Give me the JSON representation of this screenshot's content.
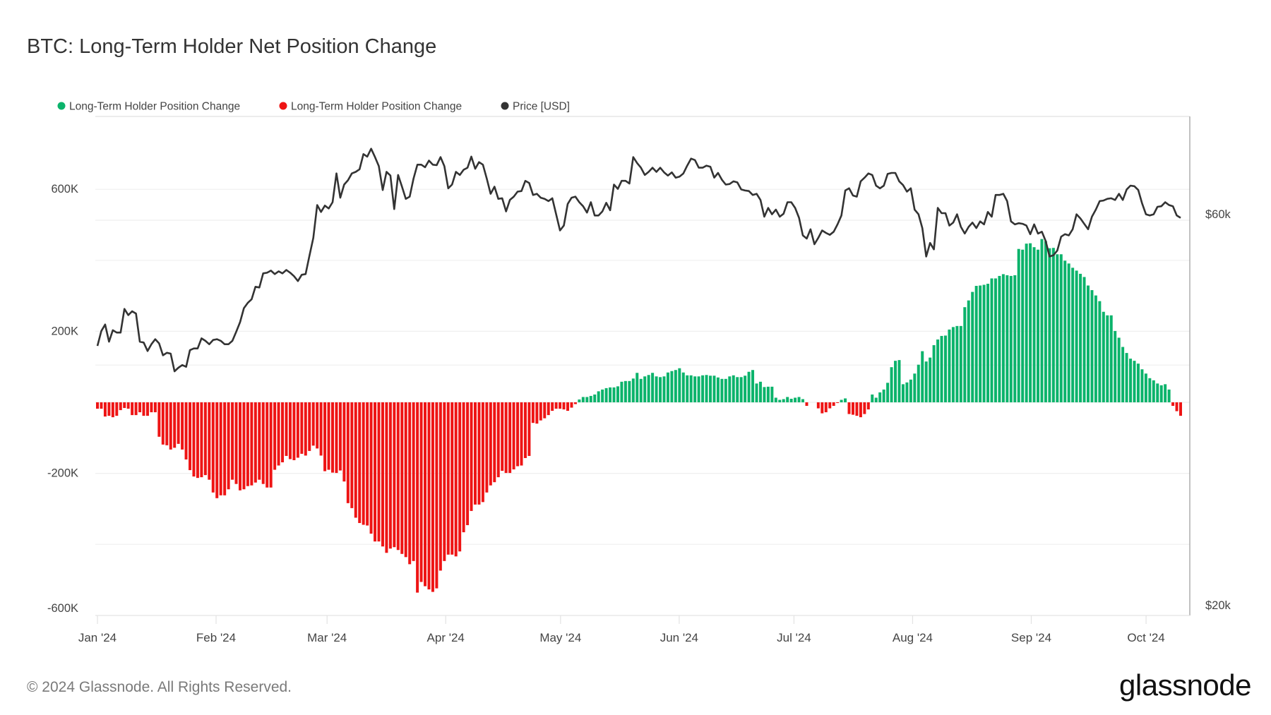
{
  "title": "BTC: Long-Term Holder Net Position Change",
  "footer": "© 2024 Glassnode. All Rights Reserved.",
  "logo_text": "glassnode",
  "colors": {
    "positive": "#0bb36b",
    "negative": "#ee1414",
    "price": "#333333"
  },
  "chart_data": {
    "type": "bar",
    "title": "BTC: Long-Term Holder Net Position Change",
    "xlabel": "",
    "ylabel": "",
    "start_date": "2024-01-01",
    "interval": "1d",
    "legend": [
      "Long-Term Holder Position Change",
      "Long-Term Holder Position Change",
      "Price [USD]"
    ],
    "legend_placement": "top-left",
    "x_ticks": [
      {
        "label": "Jan '24",
        "day": 0
      },
      {
        "label": "Feb '24",
        "day": 31
      },
      {
        "label": "Mar '24",
        "day": 60
      },
      {
        "label": "Apr '24",
        "day": 91
      },
      {
        "label": "May '24",
        "day": 121
      },
      {
        "label": "Jun '24",
        "day": 152
      },
      {
        "label": "Jul '24",
        "day": 182
      },
      {
        "label": "Aug '24",
        "day": 213
      },
      {
        "label": "Sep '24",
        "day": 244
      },
      {
        "label": "Oct '24",
        "day": 274
      }
    ],
    "y_left": {
      "ylim": [
        -600000,
        800000
      ],
      "grid": [
        -600000,
        -400000,
        -200000,
        0,
        200000,
        400000,
        600000
      ],
      "ticks": [
        {
          "label": "600K",
          "value": 600000
        },
        {
          "label": "200K",
          "value": 200000
        },
        {
          "label": "-200K",
          "value": -200000
        },
        {
          "label": "-600K",
          "value": -600000
        }
      ]
    },
    "y_right": {
      "scale": "log",
      "ylim": [
        20000,
        80000
      ],
      "grid": [
        40000,
        60000
      ],
      "ticks": [
        {
          "label": "$60k",
          "value": 60000
        },
        {
          "label": "$20k",
          "value": 20000
        }
      ]
    },
    "grid": true,
    "series": [
      {
        "name": "Long-Term Holder Position Change",
        "type": "bar",
        "axis": "left",
        "note": "positive values green, negative values red",
        "values": [
          -18000,
          -18000,
          -40000,
          -38000,
          -42000,
          -38000,
          -22000,
          -16000,
          -18000,
          -36000,
          -36000,
          -28000,
          -38000,
          -38000,
          -28000,
          -28000,
          -97000,
          -119000,
          -121000,
          -133000,
          -128000,
          -117000,
          -133000,
          -161000,
          -191000,
          -209000,
          -213000,
          -211000,
          -205000,
          -218000,
          -254000,
          -270000,
          -262000,
          -262000,
          -245000,
          -218000,
          -230000,
          -248000,
          -245000,
          -236000,
          -234000,
          -226000,
          -218000,
          -230000,
          -240000,
          -240000,
          -190000,
          -178000,
          -169000,
          -151000,
          -160000,
          -163000,
          -156000,
          -145000,
          -150000,
          -137000,
          -122000,
          -130000,
          -150000,
          -194000,
          -190000,
          -198000,
          -199000,
          -192000,
          -223000,
          -284000,
          -298000,
          -325000,
          -340000,
          -345000,
          -347000,
          -370000,
          -392000,
          -392000,
          -406000,
          -424000,
          -412000,
          -408000,
          -416000,
          -427000,
          -436000,
          -456000,
          -447000,
          -536000,
          -506000,
          -518000,
          -527000,
          -534000,
          -524000,
          -474000,
          -447000,
          -429000,
          -429000,
          -434000,
          -420000,
          -366000,
          -346000,
          -306000,
          -288000,
          -288000,
          -281000,
          -254000,
          -234000,
          -225000,
          -211000,
          -193000,
          -199000,
          -199000,
          -189000,
          -180000,
          -178000,
          -157000,
          -151000,
          -58000,
          -60000,
          -51000,
          -45000,
          -36000,
          -24000,
          -18000,
          -18000,
          -20000,
          -24000,
          -15000,
          -5000,
          8000,
          15000,
          15000,
          18000,
          22000,
          31000,
          36000,
          40000,
          42000,
          42000,
          45000,
          58000,
          60000,
          60000,
          67000,
          83000,
          66000,
          73000,
          77000,
          83000,
          73000,
          71000,
          73000,
          84000,
          88000,
          91000,
          96000,
          84000,
          76000,
          76000,
          73000,
          73000,
          76000,
          77000,
          75000,
          75000,
          70000,
          66000,
          66000,
          73000,
          76000,
          71000,
          71000,
          75000,
          86000,
          91000,
          53000,
          58000,
          43000,
          44000,
          44000,
          13000,
          7000,
          9000,
          15000,
          10000,
          13000,
          15000,
          9000,
          -10000,
          0,
          0,
          -17000,
          -31000,
          -28000,
          -17000,
          -10000,
          -2000,
          7000,
          11000,
          -33000,
          -35000,
          -38000,
          -42000,
          -33000,
          -20000,
          22000,
          13000,
          28000,
          36000,
          55000,
          99000,
          117000,
          119000,
          51000,
          56000,
          64000,
          81000,
          106000,
          144000,
          115000,
          126000,
          161000,
          177000,
          187000,
          188000,
          205000,
          212000,
          215000,
          215000,
          268000,
          287000,
          311000,
          328000,
          329000,
          331000,
          334000,
          349000,
          349000,
          356000,
          361000,
          358000,
          356000,
          358000,
          432000,
          430000,
          447000,
          448000,
          437000,
          430000,
          460000,
          454000,
          434000,
          435000,
          417000,
          417000,
          399000,
          391000,
          379000,
          371000,
          362000,
          353000,
          329000,
          316000,
          301000,
          285000,
          255000,
          245000,
          245000,
          201000,
          182000,
          156000,
          139000,
          123000,
          117000,
          109000,
          93000,
          81000,
          68000,
          62000,
          53000,
          48000,
          51000,
          36000,
          -10000,
          -25000,
          -38000
        ]
      },
      {
        "name": "Price [USD]",
        "type": "line",
        "axis": "right",
        "values": [
          42200,
          44000,
          44800,
          42700,
          44100,
          43800,
          43800,
          46800,
          46000,
          46500,
          46200,
          42700,
          42600,
          41600,
          42400,
          43000,
          42500,
          41100,
          41400,
          41300,
          39300,
          39700,
          40000,
          39800,
          41700,
          41900,
          41900,
          43100,
          42800,
          42400,
          42900,
          43000,
          42800,
          42400,
          42400,
          42800,
          43900,
          45100,
          46900,
          47600,
          48100,
          49800,
          49700,
          51700,
          51800,
          52100,
          51600,
          52000,
          51700,
          52200,
          51800,
          51300,
          50600,
          51500,
          51600,
          54300,
          57100,
          62600,
          61400,
          62500,
          62000,
          63100,
          68400,
          63900,
          66300,
          67100,
          68400,
          68700,
          69200,
          72200,
          71700,
          73300,
          71600,
          69800,
          65300,
          68700,
          68000,
          61900,
          68100,
          65900,
          63700,
          64100,
          67400,
          70100,
          70100,
          69600,
          70900,
          70100,
          70000,
          71600,
          69800,
          65600,
          66300,
          68700,
          68100,
          69100,
          69500,
          71700,
          69300,
          70600,
          70100,
          67400,
          64600,
          65900,
          63700,
          63800,
          61500,
          63500,
          64100,
          65000,
          65100,
          67000,
          66600,
          64400,
          64600,
          63900,
          63700,
          63300,
          63800,
          61000,
          58300,
          59100,
          62800,
          63900,
          64100,
          63100,
          62400,
          61300,
          63100,
          60800,
          60800,
          61500,
          63000,
          61700,
          66300,
          65500,
          67000,
          67000,
          66500,
          71600,
          70400,
          69500,
          68100,
          68700,
          69500,
          68700,
          69500,
          68600,
          68000,
          68600,
          67600,
          67800,
          68400,
          69900,
          71300,
          71000,
          69500,
          69500,
          69900,
          69700,
          67600,
          68500,
          67200,
          66300,
          66400,
          66900,
          66700,
          65400,
          65200,
          65100,
          64400,
          64600,
          63500,
          60600,
          62100,
          61000,
          61800,
          60600,
          61100,
          63100,
          63100,
          62100,
          60400,
          57500,
          57000,
          58500,
          56100,
          57100,
          58300,
          57900,
          57600,
          58100,
          59300,
          60800,
          65200,
          65600,
          64300,
          64100,
          66900,
          67600,
          68400,
          68100,
          66100,
          65600,
          66100,
          68300,
          68500,
          68500,
          66900,
          66200,
          65000,
          65600,
          61800,
          61000,
          58700,
          54200,
          56300,
          55300,
          62100,
          61200,
          61200,
          59100,
          59600,
          61000,
          58900,
          57800,
          58900,
          59600,
          58700,
          59800,
          59300,
          61400,
          60600,
          64400,
          64400,
          64600,
          63300,
          59800,
          59300,
          59500,
          59400,
          59100,
          57700,
          59300,
          57800,
          58100,
          56600,
          54200,
          54400,
          55100,
          57300,
          57700,
          57500,
          58500,
          61000,
          60300,
          59400,
          58500,
          60600,
          61800,
          63300,
          63400,
          63700,
          63800,
          63500,
          64600,
          63500,
          65400,
          66100,
          66000,
          65300,
          62900,
          61000,
          60800,
          61000,
          62300,
          62400,
          63100,
          62600,
          62400,
          60800,
          60400
        ]
      }
    ]
  }
}
